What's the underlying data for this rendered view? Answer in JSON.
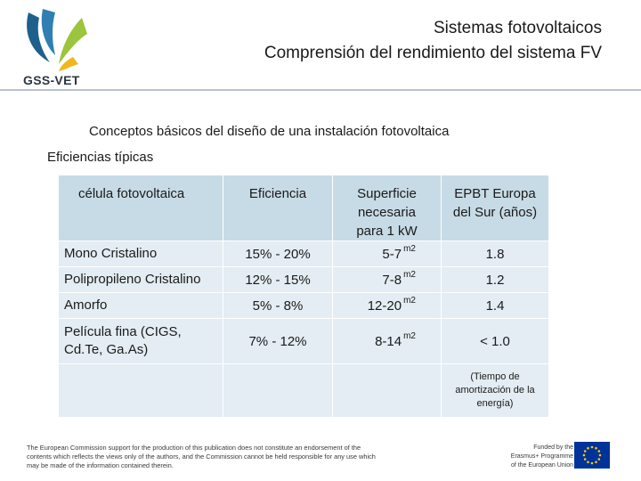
{
  "logo": {
    "text": "GSS-VET",
    "colors": {
      "blue": "#1f5f8b",
      "green": "#9bc53d",
      "yellow": "#f2b61c"
    }
  },
  "header": {
    "title_line1": "Sistemas fotovoltaicos",
    "title_line2": "Comprensión del rendimiento del sistema FV"
  },
  "content": {
    "heading": "Conceptos básicos del diseño de una instalación fotovoltaica",
    "subheading": "Eficiencias típicas"
  },
  "table": {
    "headers": {
      "cell": "célula fotovoltaica",
      "efficiency": "Eficiencia",
      "area_line1": "Superficie",
      "area_line2": "necesaria",
      "area_line3": "para 1 kW",
      "epbt_line1": "EPBT Europa",
      "epbt_line2": "del Sur (años)"
    },
    "rows": [
      {
        "name": "Mono Cristalino",
        "efficiency": "15% - 20%",
        "area": "5-7",
        "unit": "m2",
        "epbt": "1.8"
      },
      {
        "name": "Polipropileno Cristalino",
        "efficiency": "12% - 15%",
        "area": "7-8",
        "unit": "m2",
        "epbt": "1.2"
      },
      {
        "name": "Amorfo",
        "efficiency": "5% - 8%",
        "area": "12-20",
        "unit": "m2",
        "epbt": "1.4"
      },
      {
        "name_line1": "Película fina (CIGS,",
        "name_line2": "Cd.Te, Ga.As)",
        "efficiency": "7% - 12%",
        "area": "8-14",
        "unit": "m2",
        "epbt": "< 1.0"
      }
    ],
    "note_line1": "(Tiempo de",
    "note_line2": "amortización de la",
    "note_line3": "energía)"
  },
  "footer": {
    "disclaimer_line1": "The European Commission support for the production of this publication does not constitute an endorsement of the",
    "disclaimer_line2": "contents which reflects the views only of the authors, and the Commission cannot be held responsible for any use which",
    "disclaimer_line3": "may be made of the information contained therein.",
    "funded_line1": "Funded by the",
    "funded_line2": "Erasmus+ Programme",
    "funded_line3": "of the European Union"
  }
}
